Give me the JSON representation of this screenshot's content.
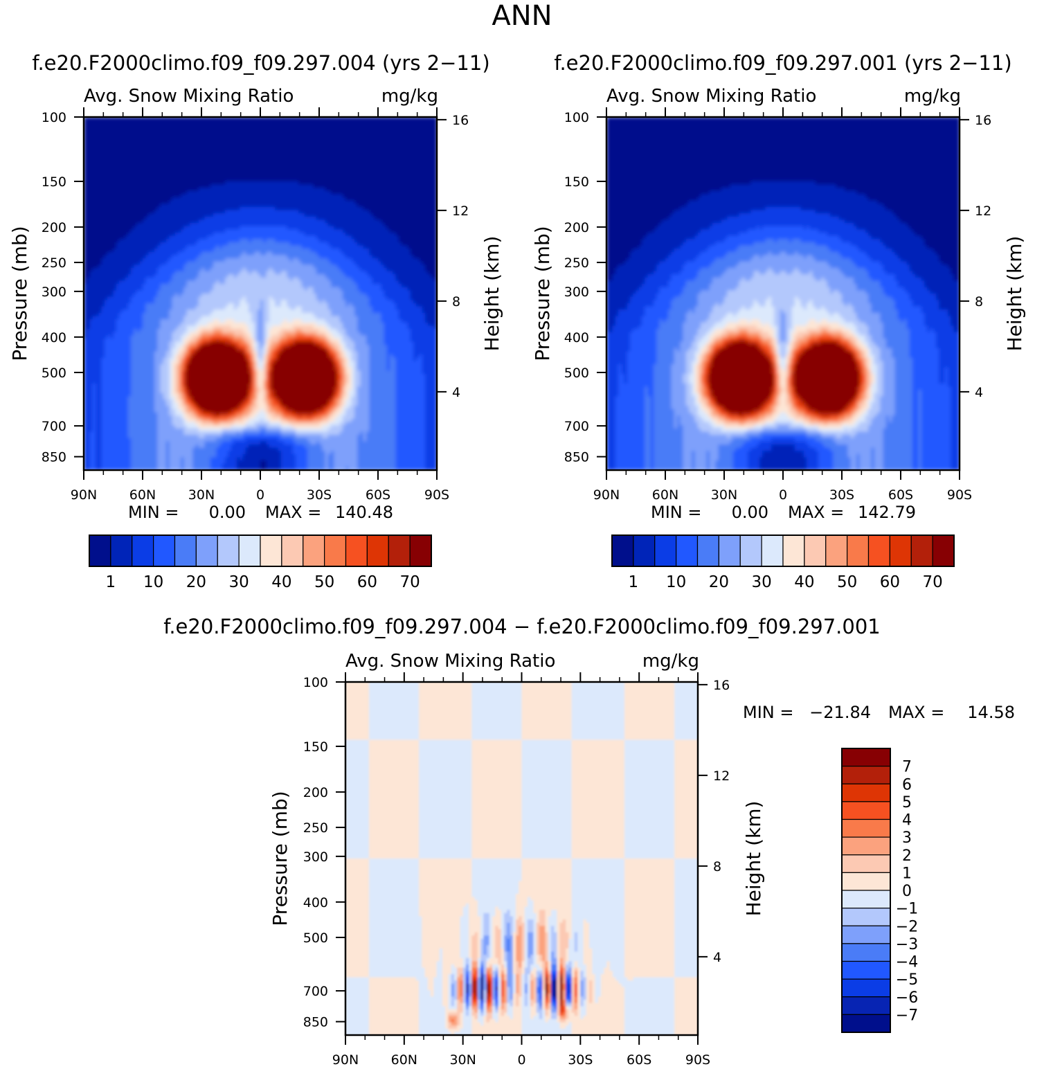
{
  "figure_title": "ANN",
  "colors": {
    "seq": [
      "#000f8c",
      "#0024b8",
      "#0b3de6",
      "#2158ff",
      "#4a7cf7",
      "#7ea0fb",
      "#b3c8fc",
      "#dce9fc",
      "#fde6d6",
      "#fcc9b3",
      "#fba27e",
      "#f97a4a",
      "#f65121",
      "#de3505",
      "#b3200a",
      "#870003"
    ],
    "diff": [
      "#000f8c",
      "#0724b3",
      "#0b3de6",
      "#2158ff",
      "#4a7cf7",
      "#7ea0fb",
      "#b3c8fc",
      "#dce9fc",
      "#fde6d6",
      "#fcc9b3",
      "#fba27e",
      "#f97a4a",
      "#f65121",
      "#de3505",
      "#b3200a",
      "#870003"
    ]
  },
  "chart_data": [
    {
      "type": "contour",
      "case": "f.e20.F2000climo.f09_f09.297.004 (yrs 2−11)",
      "variable": "Avg. Snow Mixing Ratio",
      "units": "mg/kg",
      "ylabel": "Pressure (mb)",
      "ylabel_right": "Height (km)",
      "x_ticks": [
        "90N",
        "60N",
        "30N",
        "0",
        "30S",
        "60S",
        "90S"
      ],
      "y_ticks": [
        "100",
        "150",
        "200",
        "250",
        "300",
        "400",
        "500",
        "700",
        "850"
      ],
      "y_tick_values": [
        100,
        150,
        200,
        250,
        300,
        400,
        500,
        700,
        850
      ],
      "height_ticks": [
        "16",
        "12",
        "8",
        "4"
      ],
      "height_tick_values": [
        16,
        12,
        8,
        4
      ],
      "x_range": [
        90,
        -90
      ],
      "y_range_mb": [
        100,
        925
      ],
      "stats_min_label": "MIN =",
      "stats_min": "0.00",
      "stats_max_label": "MAX =",
      "stats_max": "140.48",
      "colorbar_labels": [
        "1",
        "10",
        "20",
        "30",
        "40",
        "50",
        "60",
        "70"
      ],
      "colorbar_levels": [
        1,
        5,
        10,
        15,
        20,
        25,
        30,
        35,
        40,
        45,
        50,
        55,
        60,
        65,
        70
      ],
      "field_max": 140.48
    },
    {
      "type": "contour",
      "case": "f.e20.F2000climo.f09_f09.297.001 (yrs 2−11)",
      "variable": "Avg. Snow Mixing Ratio",
      "units": "mg/kg",
      "ylabel": "Pressure (mb)",
      "ylabel_right": "Height (km)",
      "x_ticks": [
        "90N",
        "60N",
        "30N",
        "0",
        "30S",
        "60S",
        "90S"
      ],
      "y_ticks": [
        "100",
        "150",
        "200",
        "250",
        "300",
        "400",
        "500",
        "700",
        "850"
      ],
      "y_tick_values": [
        100,
        150,
        200,
        250,
        300,
        400,
        500,
        700,
        850
      ],
      "height_ticks": [
        "16",
        "12",
        "8",
        "4"
      ],
      "height_tick_values": [
        16,
        12,
        8,
        4
      ],
      "x_range": [
        90,
        -90
      ],
      "y_range_mb": [
        100,
        925
      ],
      "stats_min_label": "MIN =",
      "stats_min": "0.00",
      "stats_max_label": "MAX =",
      "stats_max": "142.79",
      "colorbar_labels": [
        "1",
        "10",
        "20",
        "30",
        "40",
        "50",
        "60",
        "70"
      ],
      "colorbar_levels": [
        1,
        5,
        10,
        15,
        20,
        25,
        30,
        35,
        40,
        45,
        50,
        55,
        60,
        65,
        70
      ],
      "field_max": 142.79
    },
    {
      "type": "contour",
      "case": "f.e20.F2000climo.f09_f09.297.004 − f.e20.F2000climo.f09_f09.297.001",
      "variable": "Avg. Snow Mixing Ratio",
      "units": "mg/kg",
      "ylabel": "Pressure (mb)",
      "ylabel_right": "Height (km)",
      "x_ticks": [
        "90N",
        "60N",
        "30N",
        "0",
        "30S",
        "60S",
        "90S"
      ],
      "y_ticks": [
        "100",
        "150",
        "200",
        "250",
        "300",
        "400",
        "500",
        "700",
        "850"
      ],
      "y_tick_values": [
        100,
        150,
        200,
        250,
        300,
        400,
        500,
        700,
        850
      ],
      "height_ticks": [
        "16",
        "12",
        "8",
        "4"
      ],
      "height_tick_values": [
        16,
        12,
        8,
        4
      ],
      "x_range": [
        90,
        -90
      ],
      "y_range_mb": [
        100,
        925
      ],
      "stats_min_label": "MIN =",
      "stats_min": "−21.84",
      "stats_max_label": "MAX =",
      "stats_max": "14.58",
      "colorbar_labels": [
        "7",
        "6",
        "5",
        "4",
        "3",
        "2",
        "1",
        "0",
        "−1",
        "−2",
        "−3",
        "−4",
        "−5",
        "−6",
        "−7"
      ],
      "colorbar_levels": [
        -7,
        -6,
        -5,
        -4,
        -3,
        -2,
        -1,
        0,
        1,
        2,
        3,
        4,
        5,
        6,
        7
      ],
      "field_min": -21.84,
      "field_max": 14.58
    }
  ]
}
